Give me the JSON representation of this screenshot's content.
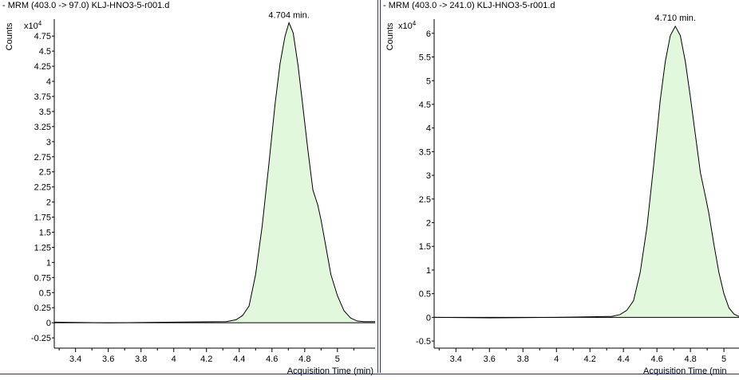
{
  "chart_data": [
    {
      "type": "area",
      "title": "- MRM (403.0 -> 97.0) KLJ-HNO3-5-r001.d",
      "ylabel": "Counts",
      "y_multiplier": "x10 4",
      "xlabel": "Acquisition Time (min)",
      "xlim": [
        3.27,
        5.23
      ],
      "ylim": [
        -0.42,
        5.03
      ],
      "x_ticks": [
        3.4,
        3.6,
        3.8,
        4,
        4.2,
        4.4,
        4.6,
        4.8,
        5
      ],
      "x_tick_labels": [
        "3.4",
        "3.6",
        "3.8",
        "4",
        "4.2",
        "4.4",
        "4.6",
        "4.8",
        "5"
      ],
      "y_ticks": [
        -0.25,
        0,
        0.25,
        0.5,
        0.75,
        1,
        1.25,
        1.5,
        1.75,
        2,
        2.25,
        2.5,
        2.75,
        3,
        3.25,
        3.5,
        3.75,
        4,
        4.25,
        4.5,
        4.75
      ],
      "y_tick_labels": [
        "-0.25",
        "0",
        "0.25",
        "0.5",
        "0.75",
        "1",
        "1.25",
        "1.5",
        "1.75",
        "2",
        "2.25",
        "2.5",
        "2.75",
        "3",
        "3.25",
        "3.5",
        "3.75",
        "4",
        "4.25",
        "4.5",
        "4.75"
      ],
      "annotations": [
        {
          "x": 4.704,
          "y": 5.0,
          "text": "4.704 min."
        }
      ],
      "fill_start_x": 4.32,
      "series": [
        {
          "x": [
            3.27,
            3.6,
            4.0,
            4.32,
            4.38,
            4.42,
            4.46,
            4.5,
            4.54,
            4.58,
            4.62,
            4.65,
            4.68,
            4.704,
            4.73,
            4.76,
            4.79,
            4.82,
            4.85,
            4.88,
            4.9,
            4.93,
            4.96,
            5.0,
            5.04,
            5.08,
            5.12,
            5.16,
            5.23
          ],
          "y": [
            0.01,
            0.0,
            0.01,
            0.02,
            0.05,
            0.12,
            0.28,
            0.8,
            1.6,
            2.6,
            3.65,
            4.3,
            4.75,
            4.97,
            4.8,
            4.25,
            3.55,
            2.85,
            2.2,
            1.95,
            1.7,
            1.25,
            0.8,
            0.45,
            0.2,
            0.08,
            0.03,
            0.02,
            0.02
          ]
        }
      ]
    },
    {
      "type": "area",
      "title": "- MRM (403.0 -> 241.0) KLJ-HNO3-5-r001.d",
      "ylabel": "Counts",
      "y_multiplier": "x10 4",
      "xlabel": "Acquisition Time (min",
      "xlim": [
        3.27,
        5.09
      ],
      "ylim": [
        -0.65,
        6.3
      ],
      "x_ticks": [
        3.4,
        3.6,
        3.8,
        4,
        4.2,
        4.4,
        4.6,
        4.8,
        5
      ],
      "x_tick_labels": [
        "3.4",
        "3.6",
        "3.8",
        "4",
        "4.2",
        "4.4",
        "4.6",
        "4.8",
        "5"
      ],
      "y_ticks": [
        -0.5,
        0,
        0.5,
        1,
        1.5,
        2,
        2.5,
        3,
        3.5,
        4,
        4.5,
        5,
        5.5,
        6
      ],
      "y_tick_labels": [
        "-0.5",
        "0",
        "0.5",
        "1",
        "1.5",
        "2",
        "2.5",
        "3",
        "3.5",
        "4",
        "4.5",
        "5",
        "5.5",
        "6"
      ],
      "annotations": [
        {
          "x": 4.71,
          "y": 6.2,
          "text": "4.710 min."
        }
      ],
      "fill_start_x": 4.33,
      "series": [
        {
          "x": [
            3.27,
            3.6,
            4.0,
            4.33,
            4.38,
            4.42,
            4.46,
            4.5,
            4.54,
            4.58,
            4.62,
            4.65,
            4.68,
            4.71,
            4.74,
            4.77,
            4.8,
            4.83,
            4.86,
            4.89,
            4.91,
            4.94,
            4.97,
            5.0,
            5.03,
            5.06,
            5.09
          ],
          "y": [
            0.0,
            -0.01,
            0.0,
            0.02,
            0.06,
            0.15,
            0.35,
            0.95,
            1.9,
            3.2,
            4.6,
            5.4,
            5.95,
            6.15,
            5.95,
            5.4,
            4.65,
            3.85,
            3.05,
            2.55,
            2.2,
            1.55,
            0.95,
            0.5,
            0.2,
            0.07,
            0.02
          ]
        }
      ]
    }
  ],
  "colors": {
    "fill": "#e2f8dc",
    "line": "#000000",
    "divider": "#2a2f8f"
  }
}
